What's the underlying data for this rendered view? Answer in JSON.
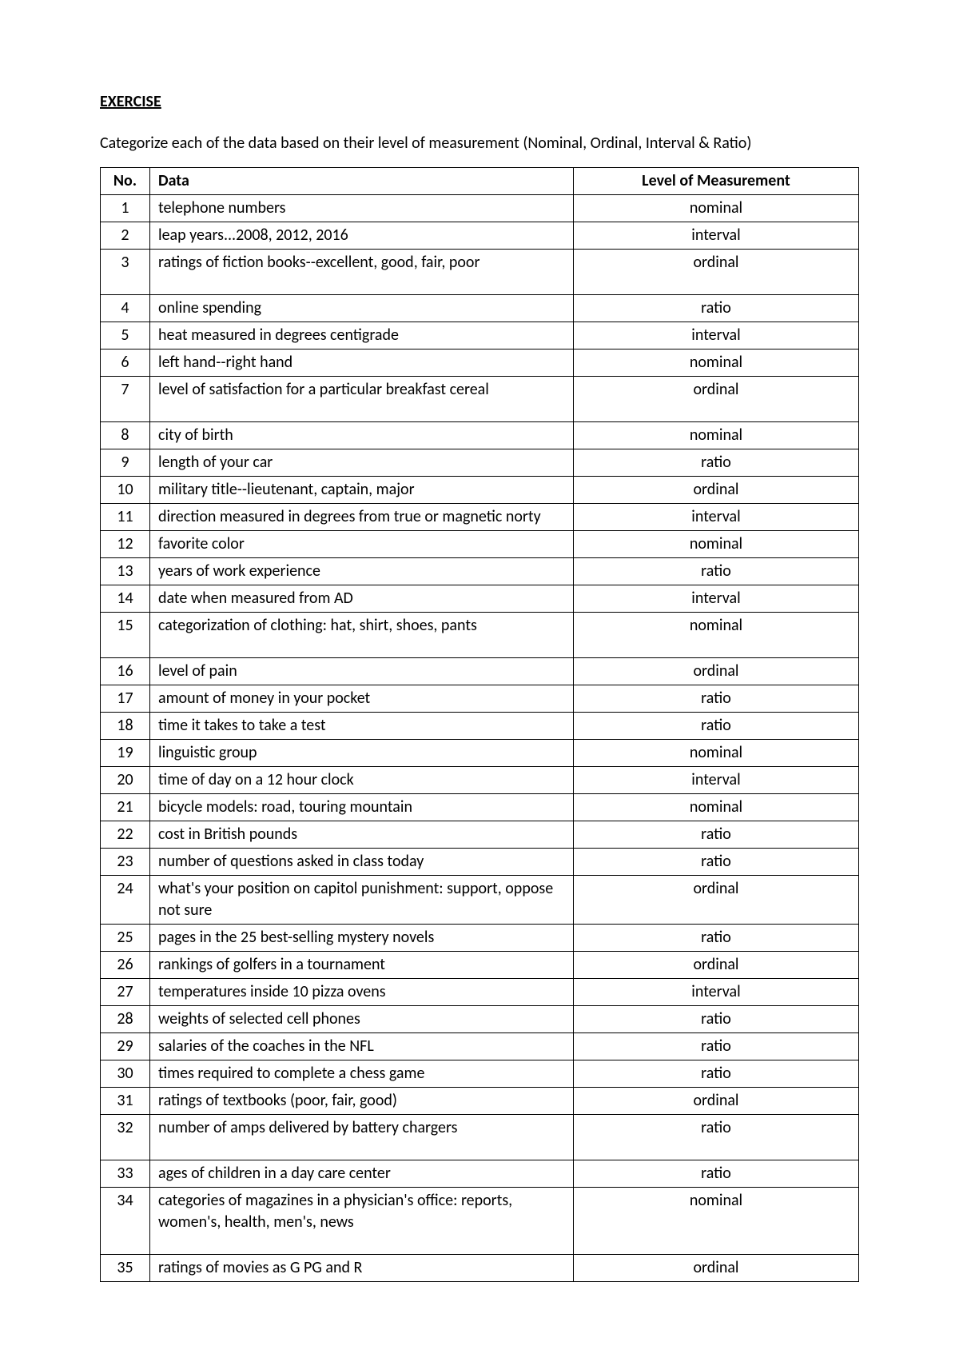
{
  "title": "EXERCISE",
  "instruction": "Categorize each of the data based on their level of measurement (Nominal, Ordinal, Interval & Ratio)",
  "columns": {
    "no": "No.",
    "data": "Data",
    "level": "Level of Measurement"
  },
  "rows": [
    {
      "no": "1",
      "data": "telephone numbers",
      "level": "nominal",
      "tall": false
    },
    {
      "no": "2",
      "data": "leap years...2008, 2012, 2016",
      "level": "interval",
      "tall": false
    },
    {
      "no": "3",
      "data": "ratings of fiction books--excellent, good, fair, poor",
      "level": "ordinal",
      "tall": true
    },
    {
      "no": "4",
      "data": "online spending",
      "level": "ratio",
      "tall": false
    },
    {
      "no": "5",
      "data": "heat measured in degrees centigrade",
      "level": "interval",
      "tall": false
    },
    {
      "no": "6",
      "data": "left hand--right hand",
      "level": "nominal",
      "tall": false
    },
    {
      "no": "7",
      "data": "level of satisfaction for a particular breakfast cereal",
      "level": "ordinal",
      "tall": true
    },
    {
      "no": "8",
      "data": "city of birth",
      "level": "nominal",
      "tall": false
    },
    {
      "no": "9",
      "data": "length of your car",
      "level": "ratio",
      "tall": false
    },
    {
      "no": "10",
      "data": "military title--lieutenant, captain, major",
      "level": "ordinal",
      "tall": false
    },
    {
      "no": "11",
      "data": "direction measured in degrees from true or magnetic norty",
      "level": "interval",
      "tall": false
    },
    {
      "no": "12",
      "data": "favorite color",
      "level": "nominal",
      "tall": false
    },
    {
      "no": "13",
      "data": "years of work experience",
      "level": "ratio",
      "tall": false
    },
    {
      "no": "14",
      "data": "date when measured from AD",
      "level": "interval",
      "tall": false
    },
    {
      "no": "15",
      "data": "categorization of clothing: hat, shirt, shoes, pants",
      "level": "nominal",
      "tall": true
    },
    {
      "no": "16",
      "data": "level of pain",
      "level": "ordinal",
      "tall": false
    },
    {
      "no": "17",
      "data": "amount of money in your pocket",
      "level": "ratio",
      "tall": false
    },
    {
      "no": "18",
      "data": "time it takes to take a test",
      "level": "ratio",
      "tall": false
    },
    {
      "no": "19",
      "data": "linguistic group",
      "level": "nominal",
      "tall": false
    },
    {
      "no": "20",
      "data": "time of day on a 12 hour clock",
      "level": "interval",
      "tall": false
    },
    {
      "no": "21",
      "data": "bicycle models: road, touring mountain",
      "level": "nominal",
      "tall": false
    },
    {
      "no": "22",
      "data": "cost in British pounds",
      "level": "ratio",
      "tall": false
    },
    {
      "no": "23",
      "data": "number of questions asked in class today",
      "level": "ratio",
      "tall": false
    },
    {
      "no": "24",
      "data": "what's your position on capitol punishment: support, oppose not sure",
      "level": "ordinal",
      "tall": false
    },
    {
      "no": "25",
      "data": "pages in the 25 best-selling mystery novels",
      "level": "ratio",
      "tall": false
    },
    {
      "no": "26",
      "data": "rankings of golfers in a tournament",
      "level": "ordinal",
      "tall": false
    },
    {
      "no": "27",
      "data": "temperatures inside 10 pizza ovens",
      "level": "interval",
      "tall": false
    },
    {
      "no": "28",
      "data": "weights of selected cell phones",
      "level": "ratio",
      "tall": false
    },
    {
      "no": "29",
      "data": "salaries of the coaches in the NFL",
      "level": "ratio",
      "tall": false
    },
    {
      "no": "30",
      "data": "times required to complete a chess game",
      "level": "ratio",
      "tall": false
    },
    {
      "no": "31",
      "data": "ratings of textbooks (poor, fair, good)",
      "level": "ordinal",
      "tall": false
    },
    {
      "no": "32",
      "data": "number of amps delivered by battery chargers",
      "level": "ratio",
      "tall": true
    },
    {
      "no": "33",
      "data": "ages of children in a day care center",
      "level": "ratio",
      "tall": false
    },
    {
      "no": "34",
      "data": "categories of magazines in a physician's office: reports, women's, health, men's, news",
      "level": "nominal",
      "tall": true
    },
    {
      "no": "35",
      "data": "ratings of movies as G PG and R",
      "level": "ordinal",
      "tall": false
    }
  ]
}
